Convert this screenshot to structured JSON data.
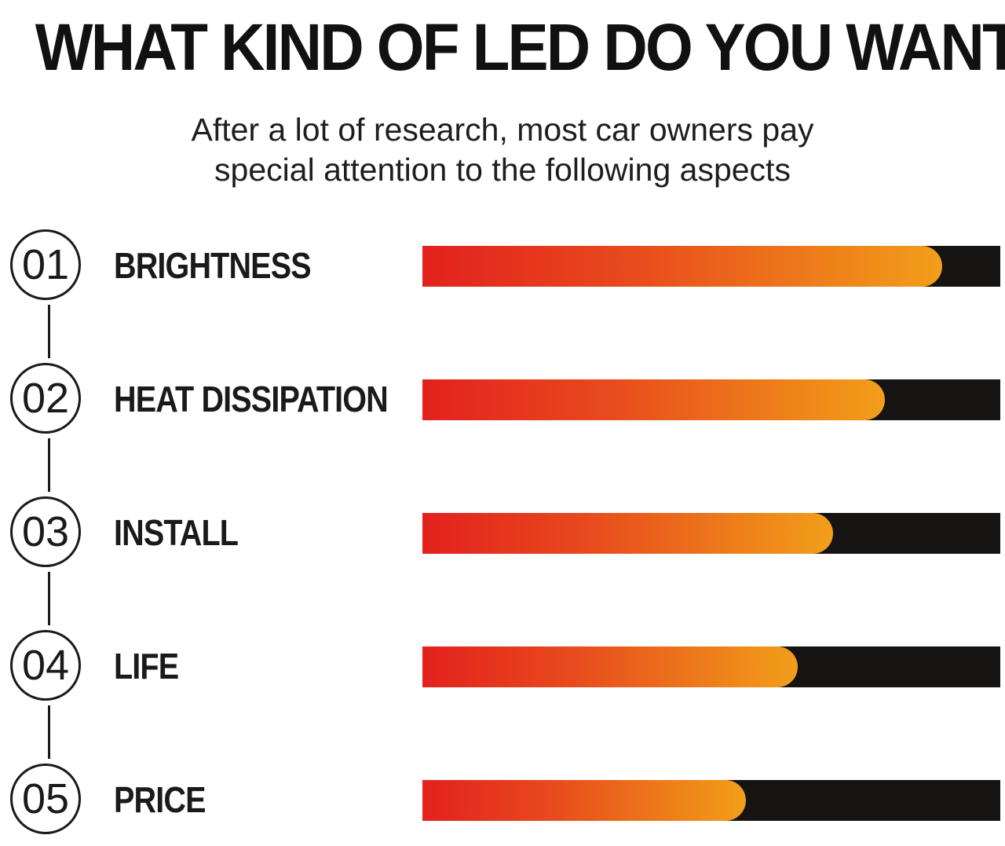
{
  "header": {
    "title": "WHAT KIND OF LED DO YOU WANT?",
    "subtitle_line1": "After a lot of research, most car owners pay",
    "subtitle_line2": "special attention to the following aspects"
  },
  "colors": {
    "bar_start": "#e3211e",
    "bar_end": "#f29e1b",
    "track": "#161412",
    "text": "#1a1a1a"
  },
  "chart_data": {
    "type": "bar",
    "orientation": "horizontal",
    "title": "WHAT KIND OF LED DO YOU WANT?",
    "subtitle": "After a lot of research, most car owners pay special attention to the following aspects",
    "categories": [
      "BRIGHTNESS",
      "HEAT DISSIPATION",
      "INSTALL",
      "LIFE",
      "PRICE"
    ],
    "numbers": [
      "01",
      "02",
      "03",
      "04",
      "05"
    ],
    "values": [
      0.9,
      0.8,
      0.71,
      0.65,
      0.56
    ],
    "xlim": [
      0,
      1
    ],
    "xlabel": "",
    "ylabel": "",
    "grid": false,
    "legend": "none"
  }
}
